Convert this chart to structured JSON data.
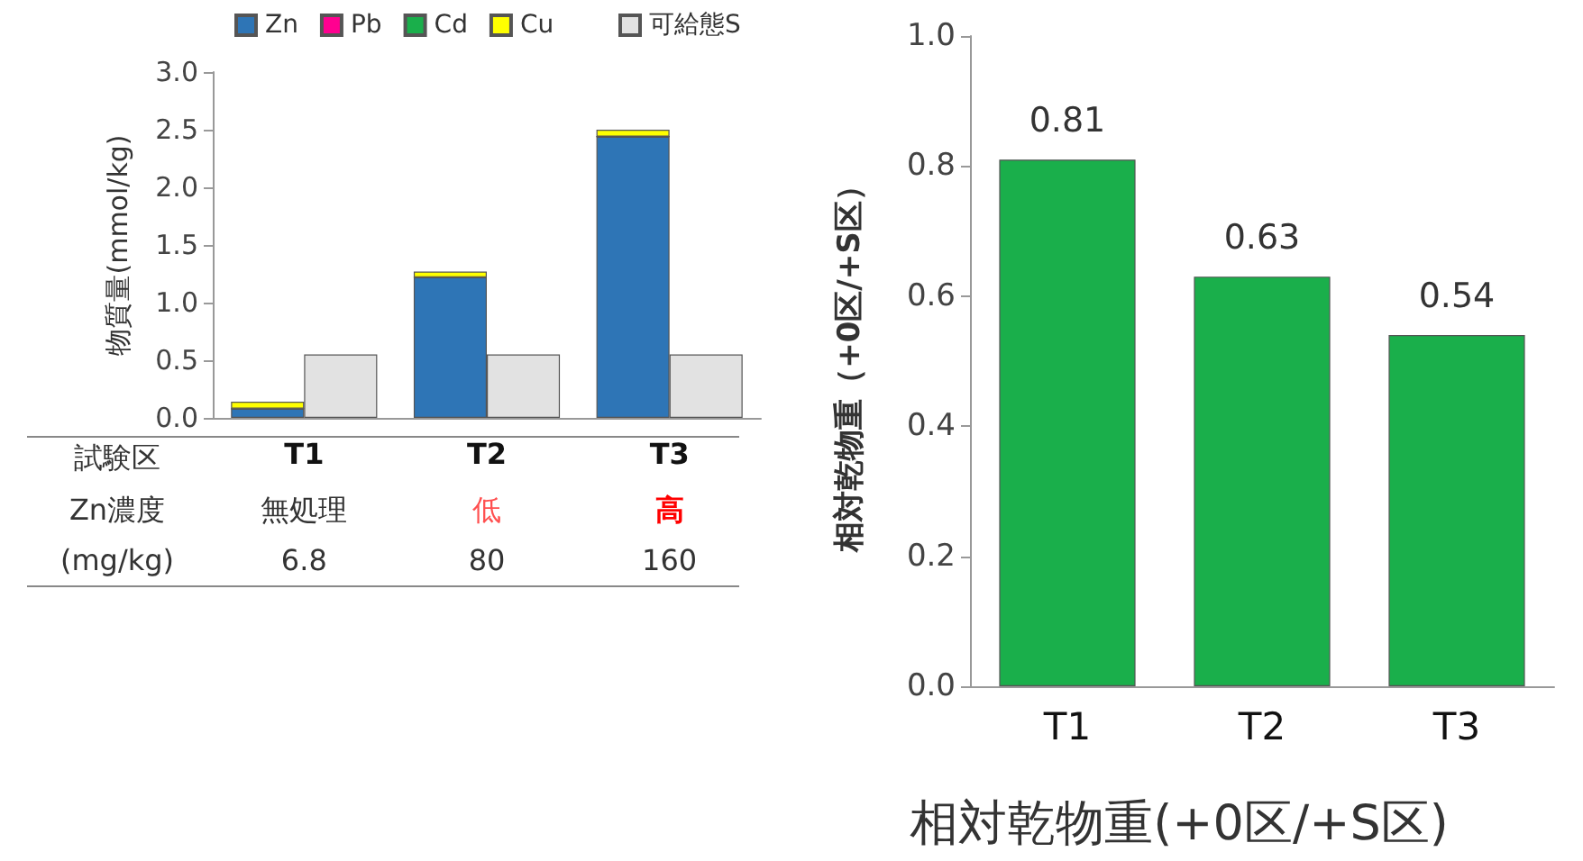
{
  "chart_data": [
    {
      "type": "bar",
      "ylabel": "物質量(mmol/kg)",
      "categories": [
        null,
        null,
        null
      ],
      "stacked": true,
      "legend": "top",
      "grid": false,
      "tick_labels": "y",
      "ylim": [
        0,
        3
      ],
      "yticks": [
        {
          "value": 0,
          "label": "0.0"
        },
        {
          "value": 0.5,
          "label": "0.5"
        },
        {
          "value": 1,
          "label": "1.0"
        },
        {
          "value": 1.5,
          "label": "1.5"
        },
        {
          "value": 2,
          "label": "2.0"
        },
        {
          "value": 2.5,
          "label": "2.5"
        },
        {
          "value": 3,
          "label": "3.0"
        }
      ],
      "series": [
        {
          "name": "Zn",
          "color": "#2e75b6",
          "values": [
            0.08,
            1.22,
            2.44
          ]
        },
        {
          "name": "Pb",
          "color": "#ff0090",
          "values": [
            0,
            0,
            0
          ]
        },
        {
          "name": "Cd",
          "color": "#1aaf4b",
          "values": [
            0,
            0,
            0
          ]
        },
        {
          "name": "Cu",
          "color": "#ffff00",
          "values": [
            0.06,
            0.05,
            0.06
          ]
        }
      ],
      "annotations": [
        "試験区",
        "Zn濃度",
        "(mg/kg)",
        "無処理",
        "低",
        "高",
        "6.8",
        "80",
        "160"
      ]
    },
    {
      "type": "bar",
      "categories": [
        "T1",
        "T2",
        "T3"
      ],
      "legend": "top",
      "grid": false,
      "tick_labels": "x",
      "ylim": [
        0,
        3
      ],
      "series": [
        {
          "name": "可給態S",
          "color": "#e2e2e2",
          "values": [
            0.55,
            0.55,
            0.55
          ]
        }
      ]
    },
    {
      "type": "bar",
      "title": "相対乾物重(+0区/+S区)",
      "ylabel": "相対乾物重（+0区/+S区）",
      "categories": [
        "T1",
        "T2",
        "T3"
      ],
      "values": [
        0.81,
        0.63,
        0.54
      ],
      "color": "#1aaf4b",
      "data_labels": true,
      "grid": false,
      "ylim": [
        0,
        1
      ],
      "yticks": [
        {
          "value": 0,
          "label": "0.0"
        },
        {
          "value": 0.2,
          "label": "0.2"
        },
        {
          "value": 0.4,
          "label": "0.4"
        },
        {
          "value": 0.6,
          "label": "0.6"
        },
        {
          "value": 0.8,
          "label": "0.8"
        },
        {
          "value": 1,
          "label": "1.0"
        }
      ]
    }
  ]
}
